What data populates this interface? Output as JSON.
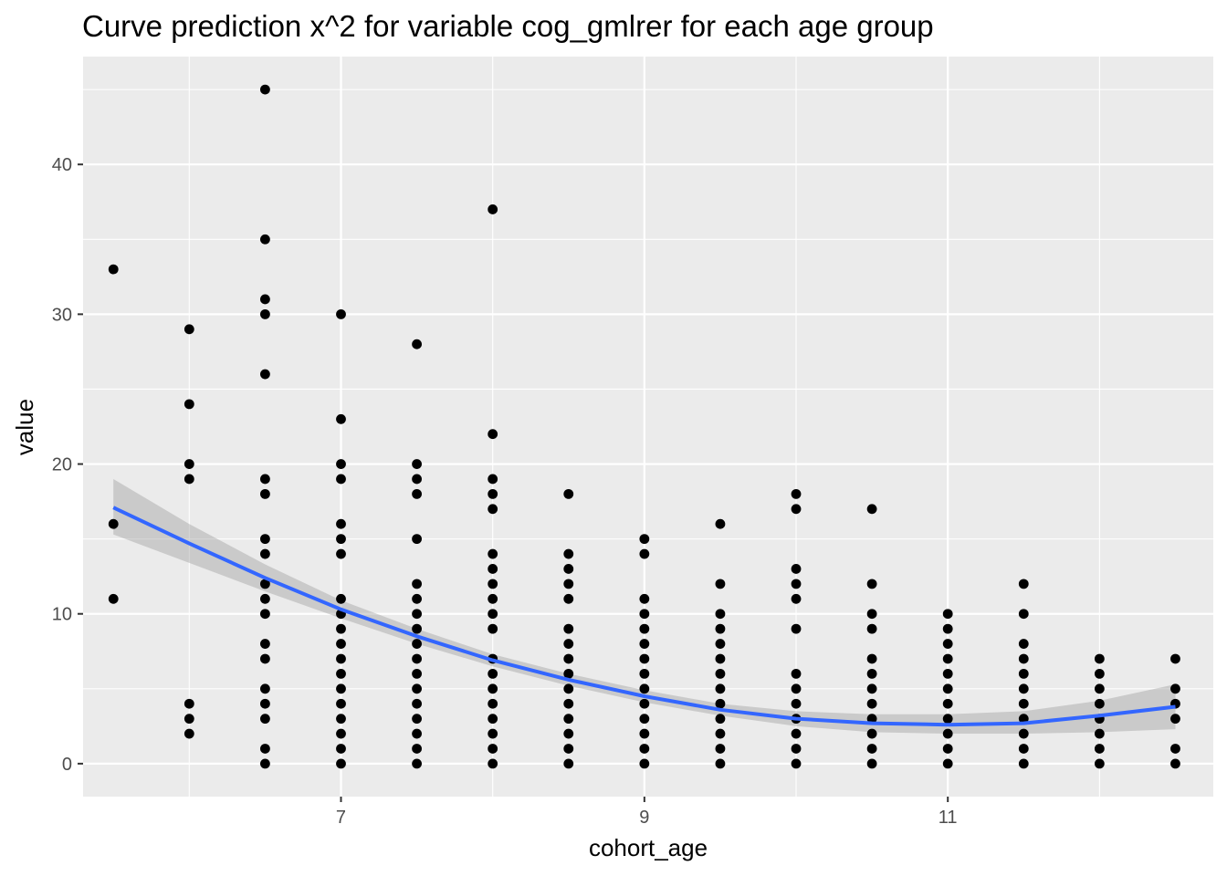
{
  "chart_data": {
    "type": "scatter",
    "title": "Curve prediction x^2  for variable cog_gmlrer for each age group",
    "xlabel": "cohort_age",
    "ylabel": "value",
    "xlim": [
      5.3,
      12.75
    ],
    "ylim": [
      -2.2,
      47.2
    ],
    "x_ticks": [
      7,
      9,
      11
    ],
    "y_ticks": [
      0,
      10,
      20,
      30,
      40
    ],
    "grid": true,
    "points": [
      [
        5.5,
        33
      ],
      [
        5.5,
        16
      ],
      [
        5.5,
        11
      ],
      [
        6,
        29
      ],
      [
        6,
        24
      ],
      [
        6,
        20
      ],
      [
        6,
        19
      ],
      [
        6,
        4
      ],
      [
        6,
        3
      ],
      [
        6,
        2
      ],
      [
        6.5,
        45
      ],
      [
        6.5,
        35
      ],
      [
        6.5,
        31
      ],
      [
        6.5,
        30
      ],
      [
        6.5,
        26
      ],
      [
        6.5,
        19
      ],
      [
        6.5,
        18
      ],
      [
        6.5,
        15
      ],
      [
        6.5,
        14
      ],
      [
        6.5,
        12
      ],
      [
        6.5,
        11
      ],
      [
        6.5,
        10
      ],
      [
        6.5,
        8
      ],
      [
        6.5,
        7
      ],
      [
        6.5,
        5
      ],
      [
        6.5,
        4
      ],
      [
        6.5,
        3
      ],
      [
        6.5,
        1
      ],
      [
        6.5,
        0
      ],
      [
        7,
        30
      ],
      [
        7,
        23
      ],
      [
        7,
        20
      ],
      [
        7,
        19
      ],
      [
        7,
        16
      ],
      [
        7,
        15
      ],
      [
        7,
        14
      ],
      [
        7,
        11
      ],
      [
        7,
        10
      ],
      [
        7,
        9
      ],
      [
        7,
        8
      ],
      [
        7,
        7
      ],
      [
        7,
        6
      ],
      [
        7,
        5
      ],
      [
        7,
        4
      ],
      [
        7,
        3
      ],
      [
        7,
        2
      ],
      [
        7,
        1
      ],
      [
        7,
        0
      ],
      [
        7.5,
        28
      ],
      [
        7.5,
        20
      ],
      [
        7.5,
        19
      ],
      [
        7.5,
        18
      ],
      [
        7.5,
        15
      ],
      [
        7.5,
        12
      ],
      [
        7.5,
        11
      ],
      [
        7.5,
        10
      ],
      [
        7.5,
        9
      ],
      [
        7.5,
        8
      ],
      [
        7.5,
        7
      ],
      [
        7.5,
        6
      ],
      [
        7.5,
        5
      ],
      [
        7.5,
        4
      ],
      [
        7.5,
        3
      ],
      [
        7.5,
        2
      ],
      [
        7.5,
        1
      ],
      [
        7.5,
        0
      ],
      [
        8,
        37
      ],
      [
        8,
        22
      ],
      [
        8,
        19
      ],
      [
        8,
        18
      ],
      [
        8,
        17
      ],
      [
        8,
        14
      ],
      [
        8,
        13
      ],
      [
        8,
        12
      ],
      [
        8,
        11
      ],
      [
        8,
        10
      ],
      [
        8,
        9
      ],
      [
        8,
        7
      ],
      [
        8,
        6
      ],
      [
        8,
        5
      ],
      [
        8,
        4
      ],
      [
        8,
        3
      ],
      [
        8,
        2
      ],
      [
        8,
        1
      ],
      [
        8,
        0
      ],
      [
        8.5,
        18
      ],
      [
        8.5,
        14
      ],
      [
        8.5,
        13
      ],
      [
        8.5,
        12
      ],
      [
        8.5,
        11
      ],
      [
        8.5,
        9
      ],
      [
        8.5,
        8
      ],
      [
        8.5,
        7
      ],
      [
        8.5,
        6
      ],
      [
        8.5,
        5
      ],
      [
        8.5,
        4
      ],
      [
        8.5,
        3
      ],
      [
        8.5,
        2
      ],
      [
        8.5,
        1
      ],
      [
        8.5,
        0
      ],
      [
        9,
        15
      ],
      [
        9,
        14
      ],
      [
        9,
        11
      ],
      [
        9,
        10
      ],
      [
        9,
        9
      ],
      [
        9,
        8
      ],
      [
        9,
        7
      ],
      [
        9,
        6
      ],
      [
        9,
        5
      ],
      [
        9,
        4
      ],
      [
        9,
        3
      ],
      [
        9,
        2
      ],
      [
        9,
        1
      ],
      [
        9,
        0
      ],
      [
        9.5,
        16
      ],
      [
        9.5,
        12
      ],
      [
        9.5,
        10
      ],
      [
        9.5,
        9
      ],
      [
        9.5,
        8
      ],
      [
        9.5,
        7
      ],
      [
        9.5,
        6
      ],
      [
        9.5,
        5
      ],
      [
        9.5,
        4
      ],
      [
        9.5,
        3
      ],
      [
        9.5,
        2
      ],
      [
        9.5,
        1
      ],
      [
        9.5,
        0
      ],
      [
        10,
        18
      ],
      [
        10,
        17
      ],
      [
        10,
        13
      ],
      [
        10,
        12
      ],
      [
        10,
        11
      ],
      [
        10,
        9
      ],
      [
        10,
        6
      ],
      [
        10,
        5
      ],
      [
        10,
        4
      ],
      [
        10,
        3
      ],
      [
        10,
        2
      ],
      [
        10,
        1
      ],
      [
        10,
        0
      ],
      [
        10.5,
        17
      ],
      [
        10.5,
        12
      ],
      [
        10.5,
        10
      ],
      [
        10.5,
        9
      ],
      [
        10.5,
        7
      ],
      [
        10.5,
        6
      ],
      [
        10.5,
        5
      ],
      [
        10.5,
        4
      ],
      [
        10.5,
        3
      ],
      [
        10.5,
        2
      ],
      [
        10.5,
        1
      ],
      [
        10.5,
        0
      ],
      [
        11,
        10
      ],
      [
        11,
        9
      ],
      [
        11,
        8
      ],
      [
        11,
        7
      ],
      [
        11,
        6
      ],
      [
        11,
        5
      ],
      [
        11,
        4
      ],
      [
        11,
        3
      ],
      [
        11,
        2
      ],
      [
        11,
        1
      ],
      [
        11,
        0
      ],
      [
        11.5,
        12
      ],
      [
        11.5,
        10
      ],
      [
        11.5,
        8
      ],
      [
        11.5,
        7
      ],
      [
        11.5,
        6
      ],
      [
        11.5,
        5
      ],
      [
        11.5,
        4
      ],
      [
        11.5,
        3
      ],
      [
        11.5,
        2
      ],
      [
        11.5,
        1
      ],
      [
        11.5,
        0
      ],
      [
        12,
        7
      ],
      [
        12,
        6
      ],
      [
        12,
        5
      ],
      [
        12,
        4
      ],
      [
        12,
        3
      ],
      [
        12,
        2
      ],
      [
        12,
        1
      ],
      [
        12,
        0
      ],
      [
        12.5,
        7
      ],
      [
        12.5,
        5
      ],
      [
        12.5,
        4
      ],
      [
        12.5,
        3
      ],
      [
        12.5,
        1
      ],
      [
        12.5,
        0
      ]
    ],
    "fit_curve": {
      "type": "quadratic",
      "x": [
        5.5,
        6,
        6.5,
        7,
        7.5,
        8,
        8.5,
        9,
        9.5,
        10,
        10.5,
        11,
        11.5,
        12,
        12.5
      ],
      "y": [
        17.1,
        14.7,
        12.4,
        10.3,
        8.5,
        6.9,
        5.6,
        4.5,
        3.6,
        3.0,
        2.7,
        2.6,
        2.7,
        3.2,
        3.8
      ],
      "ci_low": [
        15.3,
        13.4,
        11.5,
        9.7,
        8.0,
        6.5,
        5.2,
        4.1,
        3.2,
        2.5,
        2.1,
        2.0,
        2.0,
        2.1,
        2.3
      ],
      "ci_high": [
        19.0,
        16.0,
        13.3,
        10.9,
        9.0,
        7.3,
        6.0,
        4.9,
        4.0,
        3.5,
        3.3,
        3.3,
        3.5,
        4.2,
        5.3
      ],
      "line_color": "#3366FF",
      "ribbon_color": "#999999"
    },
    "colors": {
      "panel_background": "#EBEBEB",
      "grid": "#FFFFFF",
      "points": "#000000"
    }
  }
}
